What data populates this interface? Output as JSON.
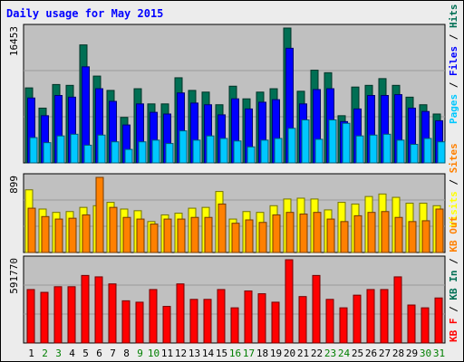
{
  "title": "Daily usage for May 2015",
  "colors": {
    "hits": "#006f54",
    "files": "#0000ff",
    "pages": "#00c8ff",
    "visits": "#ffff00",
    "sites": "#ff8000",
    "kbin": "#ff0000",
    "kbout": "#ff8000",
    "panel_bg": "#c0c0c0",
    "page_bg": "#ececec",
    "weekend_label": "#007f00",
    "weekday_label": "#000000"
  },
  "chart_data": [
    {
      "type": "bar",
      "panel": "top",
      "ymax_label": "16453",
      "legend": [
        "Pages",
        "Files",
        "Hits"
      ],
      "categories": [
        "1",
        "2",
        "3",
        "4",
        "5",
        "6",
        "7",
        "8",
        "9",
        "10",
        "11",
        "12",
        "13",
        "14",
        "15",
        "16",
        "17",
        "18",
        "19",
        "20",
        "21",
        "22",
        "23",
        "24",
        "25",
        "26",
        "27",
        "28",
        "29",
        "30",
        "31"
      ],
      "weekend": [
        false,
        true,
        true,
        false,
        false,
        false,
        false,
        false,
        true,
        true,
        false,
        false,
        false,
        false,
        false,
        true,
        true,
        false,
        false,
        false,
        false,
        false,
        true,
        true,
        false,
        false,
        false,
        false,
        false,
        true,
        true
      ],
      "series": [
        {
          "name": "Hits",
          "values": [
            8900,
            6500,
            9300,
            9200,
            14000,
            10300,
            8600,
            5400,
            8800,
            7000,
            7000,
            10100,
            8600,
            8400,
            6900,
            9100,
            7600,
            8400,
            8800,
            16000,
            8500,
            11000,
            10700,
            5600,
            9000,
            9200,
            10000,
            9200,
            7800,
            6900,
            5800
          ]
        },
        {
          "name": "Files",
          "values": [
            7700,
            5600,
            8000,
            7800,
            11400,
            8800,
            7300,
            4500,
            7000,
            6000,
            5800,
            8300,
            7100,
            6900,
            5700,
            7600,
            6400,
            7200,
            7500,
            13600,
            7000,
            8700,
            8800,
            4900,
            6400,
            8000,
            8000,
            8100,
            6500,
            6100,
            5000
          ]
        },
        {
          "name": "Pages",
          "values": [
            3000,
            2400,
            3200,
            3400,
            2100,
            3300,
            2500,
            1600,
            2500,
            2700,
            2300,
            3800,
            2700,
            3200,
            2900,
            2600,
            1900,
            2700,
            2900,
            4100,
            5100,
            2800,
            5100,
            4700,
            3200,
            3300,
            3400,
            2700,
            2200,
            2900,
            2500
          ]
        }
      ]
    },
    {
      "type": "bar",
      "panel": "middle",
      "ymax_label": "899",
      "legend": [
        "Visits",
        "Sites"
      ],
      "series": [
        {
          "name": "Visits",
          "values": [
            750,
            520,
            480,
            490,
            540,
            560,
            600,
            520,
            500,
            370,
            450,
            470,
            530,
            540,
            730,
            400,
            490,
            480,
            560,
            640,
            650,
            640,
            510,
            600,
            580,
            670,
            700,
            660,
            590,
            590,
            560
          ]
        },
        {
          "name": "Sites",
          "values": [
            530,
            430,
            400,
            410,
            450,
            899,
            540,
            420,
            400,
            340,
            400,
            400,
            420,
            420,
            580,
            350,
            390,
            360,
            450,
            480,
            460,
            480,
            400,
            370,
            440,
            480,
            490,
            420,
            370,
            380,
            520
          ]
        }
      ]
    },
    {
      "type": "bar",
      "panel": "bottom",
      "ymax_label": "591770",
      "legend": [
        "KB F",
        "KB In",
        "KB Out"
      ],
      "series": [
        {
          "name": "KB F",
          "values": [
            380000,
            360000,
            400000,
            400000,
            480000,
            470000,
            420000,
            300000,
            290000,
            380000,
            260000,
            420000,
            310000,
            310000,
            380000,
            250000,
            370000,
            350000,
            290000,
            591770,
            330000,
            480000,
            310000,
            250000,
            340000,
            380000,
            380000,
            470000,
            270000,
            250000,
            320000
          ]
        }
      ]
    }
  ]
}
